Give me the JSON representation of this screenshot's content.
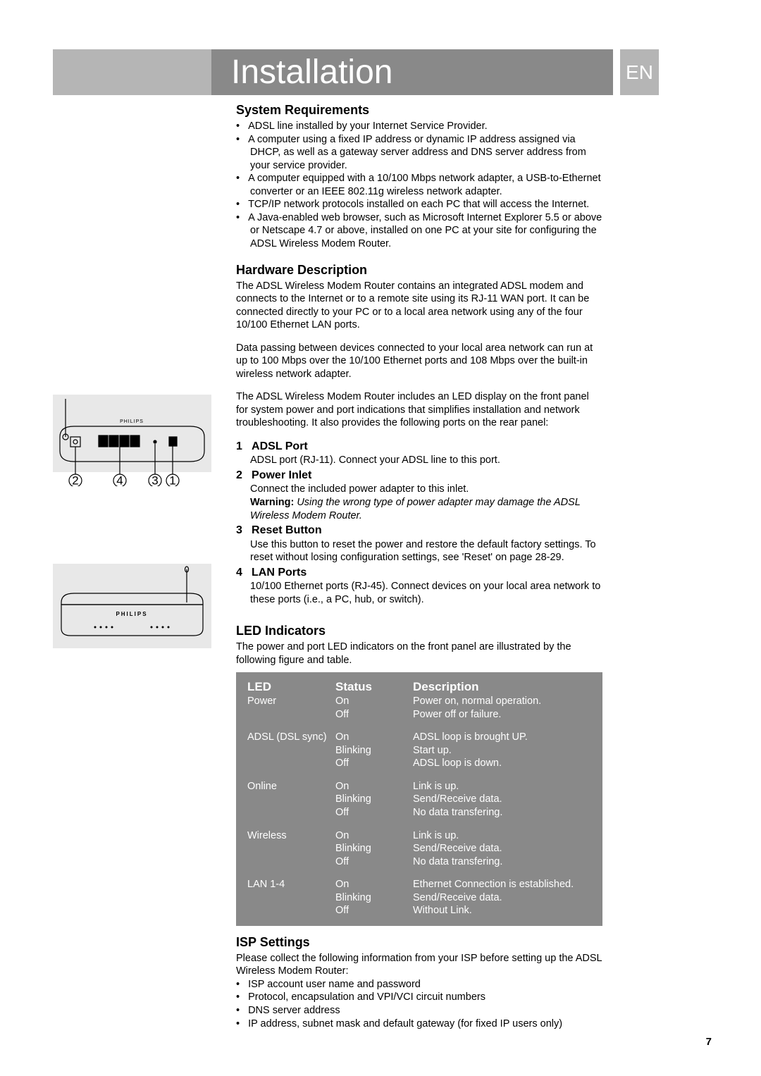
{
  "header": {
    "title": "Installation",
    "lang": "EN"
  },
  "sysReq": {
    "heading": "System Requirements",
    "items": [
      "ADSL line installed by your Internet Service Provider.",
      "A computer using a fixed IP address or dynamic IP address assigned via DHCP, as well as a gateway server address and DNS server address from your service provider.",
      "A computer equipped with a 10/100 Mbps network adapter, a USB-to-Ethernet converter or an IEEE 802.11g wireless network adapter.",
      "TCP/IP network protocols installed on each PC that will access the Internet.",
      "A Java-enabled web browser, such as Microsoft Internet Explorer 5.5 or above or Netscape 4.7 or above, installed on one PC at your site for configuring the ADSL Wireless Modem Router."
    ]
  },
  "hwDesc": {
    "heading": "Hardware Description",
    "p1": "The ADSL Wireless Modem Router contains an integrated ADSL modem and connects to the Internet or to a remote site using its RJ-11 WAN port. It can be connected directly to your PC or to a local area network using any of the four 10/100 Ethernet LAN ports.",
    "p2": "Data passing between devices connected to your local area network can run at up to 100 Mbps over the 10/100 Ethernet ports and 108 Mbps over the built-in wireless network adapter.",
    "p3": "The ADSL Wireless Modem Router includes an LED display on the front panel for system power and port indications that simplifies installation and network troubleshooting. It also provides the following ports on the rear panel:"
  },
  "ports": {
    "items": [
      {
        "num": "1",
        "title": "ADSL Port",
        "body": "ADSL port (RJ-11). Connect your ADSL line to this port."
      },
      {
        "num": "2",
        "title": "Power Inlet",
        "body": "Connect the included power adapter to this inlet.",
        "warnLabel": "Warning:",
        "warnText": "Using the wrong type of power adapter may damage the ADSL Wireless Modem Router."
      },
      {
        "num": "3",
        "title": "Reset Button",
        "body": "Use this button to reset the power and restore the default factory settings. To reset without losing configuration settings, see 'Reset' on page 28-29."
      },
      {
        "num": "4",
        "title": "LAN Ports",
        "body": "10/100 Ethernet ports (RJ-45). Connect devices on your local area network to these ports (i.e., a PC, hub, or switch)."
      }
    ]
  },
  "ledInd": {
    "heading": "LED Indicators",
    "intro": "The power and port LED indicators on the front panel are illustrated by the following figure and table.",
    "tableHead": {
      "c1": "LED",
      "c2": "Status",
      "c3": "Description"
    },
    "groups": [
      {
        "name": "Power",
        "rows": [
          {
            "status": "On",
            "desc": "Power on, normal operation."
          },
          {
            "status": "Off",
            "desc": "Power off or failure."
          }
        ]
      },
      {
        "name": "ADSL (DSL sync)",
        "rows": [
          {
            "status": "On",
            "desc": "ADSL loop is brought UP."
          },
          {
            "status": "Blinking",
            "desc": "Start up."
          },
          {
            "status": "Off",
            "desc": "ADSL loop is down."
          }
        ]
      },
      {
        "name": "Online",
        "rows": [
          {
            "status": "On",
            "desc": "Link is up."
          },
          {
            "status": "Blinking",
            "desc": "Send/Receive data."
          },
          {
            "status": "Off",
            "desc": "No data transfering."
          }
        ]
      },
      {
        "name": "Wireless",
        "rows": [
          {
            "status": "On",
            "desc": "Link is up."
          },
          {
            "status": "Blinking",
            "desc": "Send/Receive data."
          },
          {
            "status": "Off",
            "desc": "No data transfering."
          }
        ]
      },
      {
        "name": "LAN 1-4",
        "rows": [
          {
            "status": "On",
            "desc": "Ethernet Connection is established."
          },
          {
            "status": "Blinking",
            "desc": "Send/Receive data."
          },
          {
            "status": "Off",
            "desc": "Without Link."
          }
        ]
      }
    ]
  },
  "isp": {
    "heading": "ISP Settings",
    "intro": "Please collect the following information from your ISP before setting up the ADSL Wireless Modem Router:",
    "items": [
      "ISP account user name and password",
      "Protocol, encapsulation and VPI/VCI circuit numbers",
      "DNS server address",
      "IP address, subnet mask and default gateway (for fixed IP users only)"
    ]
  },
  "pageNumber": "7",
  "callouts": {
    "c1": "1",
    "c2": "2",
    "c3": "3",
    "c4": "4"
  },
  "brand": "PHILIPS",
  "colors": {
    "sidebar_grey": "#b5b5b5",
    "titlebar_grey": "#898989",
    "table_bg": "#898989",
    "text": "#000000",
    "white": "#ffffff"
  }
}
